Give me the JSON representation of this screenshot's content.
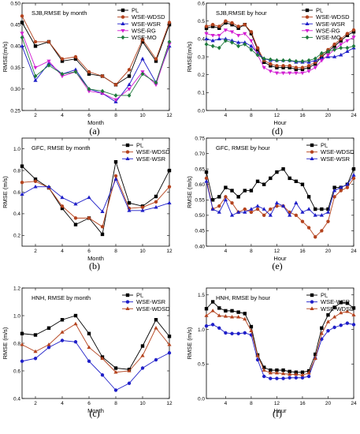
{
  "colors": {
    "PL": "#000000",
    "WSE-WDSD": "#b4431e",
    "WSE-WSR": "#1f1fc8",
    "WSE-RG": "#d21fd2",
    "WSE-MO": "#1e7a3c"
  },
  "chart_data": [
    {
      "type": "line",
      "caption": "(a)",
      "title": "SJB,RMSE by month",
      "xlabel": "Month",
      "ylabel": "RMSE(m/s)",
      "xlim": [
        1,
        12
      ],
      "ylim": [
        0.25,
        0.5
      ],
      "xticks": [
        2,
        4,
        6,
        8,
        10,
        12
      ],
      "yticks": [
        0.25,
        0.3,
        0.35,
        0.4,
        0.45,
        0.5
      ],
      "ytick_labels": [
        "0.25",
        "0.30",
        "0.35",
        "0.40",
        "0.45",
        "0.50"
      ],
      "x": [
        1,
        2,
        3,
        4,
        5,
        6,
        7,
        8,
        9,
        10,
        11,
        12
      ],
      "legend": "top-right",
      "series": [
        {
          "name": "PL",
          "marker": "square",
          "values": [
            0.455,
            0.4,
            0.41,
            0.365,
            0.37,
            0.335,
            0.33,
            0.31,
            0.33,
            0.41,
            0.365,
            0.45
          ]
        },
        {
          "name": "WSE-WDSD",
          "marker": "circle",
          "values": [
            0.47,
            0.41,
            0.41,
            0.37,
            0.375,
            0.34,
            0.33,
            0.31,
            0.345,
            0.415,
            0.37,
            0.455
          ]
        },
        {
          "name": "WSE-WSR",
          "marker": "triangle",
          "values": [
            0.4,
            0.32,
            0.36,
            0.335,
            0.345,
            0.3,
            0.29,
            0.27,
            0.31,
            0.37,
            0.315,
            0.4
          ]
        },
        {
          "name": "WSE-RG",
          "marker": "triangle-down",
          "values": [
            0.43,
            0.35,
            0.365,
            0.33,
            0.34,
            0.295,
            0.29,
            0.275,
            0.3,
            0.34,
            0.31,
            0.405
          ]
        },
        {
          "name": "WSE-MO",
          "marker": "diamond",
          "values": [
            0.42,
            0.33,
            0.355,
            0.335,
            0.34,
            0.3,
            0.295,
            0.285,
            0.285,
            0.335,
            0.315,
            0.41
          ]
        }
      ]
    },
    {
      "type": "line",
      "caption": "(d)",
      "title": "SJB,RMSE by hour",
      "xlabel": "Hour",
      "ylabel": "RMSE(m/s)",
      "xlim": [
        1,
        24
      ],
      "ylim": [
        0.0,
        0.6
      ],
      "xticks": [
        4,
        8,
        12,
        16,
        20,
        24
      ],
      "yticks": [
        0.0,
        0.1,
        0.2,
        0.3,
        0.4,
        0.5,
        0.6
      ],
      "ytick_labels": [
        "0.0",
        "0.1",
        "0.2",
        "0.3",
        "0.4",
        "0.5",
        "0.6"
      ],
      "x": [
        1,
        2,
        3,
        4,
        5,
        6,
        7,
        8,
        9,
        10,
        11,
        12,
        13,
        14,
        15,
        16,
        17,
        18,
        19,
        20,
        21,
        22,
        23,
        24
      ],
      "legend": "top-right",
      "series": [
        {
          "name": "PL",
          "marker": "square",
          "values": [
            0.46,
            0.47,
            0.46,
            0.49,
            0.48,
            0.46,
            0.48,
            0.43,
            0.34,
            0.27,
            0.25,
            0.24,
            0.24,
            0.24,
            0.23,
            0.23,
            0.24,
            0.26,
            0.3,
            0.33,
            0.36,
            0.39,
            0.42,
            0.44
          ]
        },
        {
          "name": "WSE-WDSD",
          "marker": "circle",
          "values": [
            0.47,
            0.48,
            0.47,
            0.5,
            0.49,
            0.47,
            0.48,
            0.44,
            0.35,
            0.28,
            0.26,
            0.25,
            0.25,
            0.25,
            0.24,
            0.24,
            0.25,
            0.27,
            0.31,
            0.34,
            0.37,
            0.4,
            0.43,
            0.45
          ]
        },
        {
          "name": "WSE-WSR",
          "marker": "triangle",
          "values": [
            0.4,
            0.39,
            0.4,
            0.4,
            0.39,
            0.38,
            0.38,
            0.36,
            0.32,
            0.29,
            0.28,
            0.28,
            0.28,
            0.28,
            0.27,
            0.27,
            0.27,
            0.28,
            0.29,
            0.3,
            0.3,
            0.31,
            0.33,
            0.35
          ]
        },
        {
          "name": "WSE-RG",
          "marker": "triangle-down",
          "values": [
            0.43,
            0.42,
            0.42,
            0.45,
            0.44,
            0.42,
            0.43,
            0.39,
            0.31,
            0.24,
            0.22,
            0.21,
            0.21,
            0.21,
            0.21,
            0.21,
            0.22,
            0.24,
            0.28,
            0.31,
            0.34,
            0.37,
            0.39,
            0.41
          ]
        },
        {
          "name": "WSE-MO",
          "marker": "diamond",
          "values": [
            0.37,
            0.36,
            0.35,
            0.39,
            0.38,
            0.36,
            0.37,
            0.34,
            0.31,
            0.29,
            0.285,
            0.28,
            0.28,
            0.28,
            0.275,
            0.275,
            0.28,
            0.29,
            0.32,
            0.33,
            0.34,
            0.35,
            0.35,
            0.36
          ]
        }
      ]
    },
    {
      "type": "line",
      "caption": "(b)",
      "title": "GFC, RMSE by month",
      "xlabel": "Month",
      "ylabel": "RMSE (m/s)",
      "xlim": [
        1,
        12
      ],
      "ylim": [
        0.1,
        1.1
      ],
      "xticks": [
        2,
        4,
        6,
        8,
        10,
        12
      ],
      "yticks": [
        0.2,
        0.4,
        0.6,
        0.8,
        1.0
      ],
      "ytick_labels": [
        "0.2",
        "0.4",
        "0.6",
        "0.8",
        "1.0"
      ],
      "x": [
        1,
        2,
        3,
        4,
        5,
        6,
        7,
        8,
        9,
        10,
        11,
        12
      ],
      "legend": "top-right",
      "series": [
        {
          "name": "PL",
          "marker": "square",
          "values": [
            0.84,
            0.72,
            0.64,
            0.45,
            0.3,
            0.36,
            0.21,
            0.88,
            0.5,
            0.47,
            0.56,
            0.8
          ]
        },
        {
          "name": "WSE-WDSD",
          "marker": "circle",
          "values": [
            0.69,
            0.7,
            0.64,
            0.47,
            0.36,
            0.36,
            0.28,
            0.75,
            0.45,
            0.46,
            0.51,
            0.65
          ]
        },
        {
          "name": "WSE-WSR",
          "marker": "triangle",
          "values": [
            0.58,
            0.65,
            0.65,
            0.55,
            0.49,
            0.55,
            0.42,
            0.72,
            0.43,
            0.43,
            0.46,
            0.5
          ]
        }
      ]
    },
    {
      "type": "line",
      "caption": "(e)",
      "title": "GFC, RMSE by hour",
      "xlabel": "Hour",
      "ylabel": "RMSE (m/s)",
      "xlim": [
        1,
        24
      ],
      "ylim": [
        0.4,
        0.75
      ],
      "xticks": [
        4,
        8,
        12,
        16,
        20,
        24
      ],
      "yticks": [
        0.4,
        0.45,
        0.5,
        0.55,
        0.6,
        0.65,
        0.7,
        0.75
      ],
      "ytick_labels": [
        "0.40",
        "0.45",
        "0.50",
        "0.55",
        "0.60",
        "0.65",
        "0.70",
        "0.75"
      ],
      "x": [
        1,
        2,
        3,
        4,
        5,
        6,
        7,
        8,
        9,
        10,
        11,
        12,
        13,
        14,
        15,
        16,
        17,
        18,
        19,
        20,
        21,
        22,
        23,
        24
      ],
      "legend": "top-right",
      "series": [
        {
          "name": "PL",
          "marker": "square",
          "values": [
            0.64,
            0.55,
            0.56,
            0.59,
            0.58,
            0.56,
            0.58,
            0.58,
            0.61,
            0.6,
            0.62,
            0.64,
            0.65,
            0.62,
            0.61,
            0.6,
            0.56,
            0.52,
            0.52,
            0.52,
            0.59,
            0.59,
            0.6,
            0.65
          ]
        },
        {
          "name": "WSE-WDSD",
          "marker": "circle",
          "values": [
            0.62,
            0.52,
            0.53,
            0.56,
            0.54,
            0.51,
            0.52,
            0.51,
            0.52,
            0.5,
            0.52,
            0.53,
            0.53,
            0.51,
            0.5,
            0.48,
            0.46,
            0.43,
            0.45,
            0.48,
            0.56,
            0.58,
            0.59,
            0.62
          ]
        },
        {
          "name": "WSE-WSR",
          "marker": "triangle",
          "values": [
            0.61,
            0.52,
            0.51,
            0.55,
            0.5,
            0.51,
            0.51,
            0.52,
            0.53,
            0.52,
            0.5,
            0.54,
            0.53,
            0.5,
            0.54,
            0.51,
            0.52,
            0.5,
            0.5,
            0.51,
            0.58,
            0.59,
            0.6,
            0.63
          ]
        }
      ]
    },
    {
      "type": "line",
      "caption": "(c)",
      "title": "HNH, RMSE by month",
      "xlabel": "Month",
      "ylabel": "RMSE (m/s)",
      "xlim": [
        1,
        12
      ],
      "ylim": [
        0.4,
        1.2
      ],
      "xticks": [
        2,
        4,
        6,
        8,
        10,
        12
      ],
      "yticks": [
        0.4,
        0.6,
        0.8,
        1.0,
        1.2
      ],
      "ytick_labels": [
        "0.4",
        "0.6",
        "0.8",
        "1.0",
        "1.2"
      ],
      "x": [
        1,
        2,
        3,
        4,
        5,
        6,
        7,
        8,
        9,
        10,
        11,
        12
      ],
      "legend": "top-right",
      "series": [
        {
          "name": "PL",
          "marker": "square",
          "values": [
            0.87,
            0.86,
            0.91,
            0.97,
            1.0,
            0.87,
            0.7,
            0.62,
            0.61,
            0.78,
            0.97,
            0.85
          ]
        },
        {
          "name": "WSE-WSR",
          "marker": "circle",
          "values": [
            0.67,
            0.69,
            0.77,
            0.82,
            0.81,
            0.67,
            0.57,
            0.46,
            0.51,
            0.62,
            0.68,
            0.73
          ]
        },
        {
          "name": "WSE-WDSD",
          "marker": "triangle",
          "values": [
            0.79,
            0.74,
            0.79,
            0.88,
            0.94,
            0.77,
            0.69,
            0.59,
            0.6,
            0.71,
            0.91,
            0.79
          ]
        }
      ]
    },
    {
      "type": "line",
      "caption": "(f)",
      "title": "HNH, RMSE by hour",
      "xlabel": "Hour",
      "ylabel": "RMSE (m/s)",
      "xlim": [
        1,
        24
      ],
      "ylim": [
        0.0,
        1.6
      ],
      "xticks": [
        4,
        8,
        12,
        16,
        20,
        24
      ],
      "yticks": [
        0.0,
        0.5,
        1.0,
        1.5
      ],
      "ytick_labels": [
        "0.0",
        "0.5",
        "1.0",
        "1.5"
      ],
      "x": [
        1,
        2,
        3,
        4,
        5,
        6,
        7,
        8,
        9,
        10,
        11,
        12,
        13,
        14,
        15,
        16,
        17,
        18,
        19,
        20,
        21,
        22,
        23,
        24
      ],
      "legend": "top-right",
      "series": [
        {
          "name": "PL",
          "marker": "square",
          "values": [
            1.3,
            1.4,
            1.31,
            1.27,
            1.27,
            1.25,
            1.23,
            1.04,
            0.63,
            0.45,
            0.41,
            0.41,
            0.41,
            0.39,
            0.38,
            0.38,
            0.4,
            0.64,
            1.02,
            1.21,
            1.32,
            1.39,
            1.38,
            1.31
          ]
        },
        {
          "name": "WSE-WSR",
          "marker": "circle",
          "values": [
            1.05,
            1.07,
            1.02,
            0.95,
            0.94,
            0.94,
            0.95,
            0.92,
            0.56,
            0.32,
            0.29,
            0.29,
            0.29,
            0.3,
            0.3,
            0.3,
            0.32,
            0.58,
            0.86,
            0.98,
            1.03,
            1.06,
            1.09,
            1.07
          ]
        },
        {
          "name": "WSE-WDSD",
          "marker": "triangle",
          "values": [
            1.2,
            1.27,
            1.2,
            1.19,
            1.18,
            1.18,
            1.15,
            0.98,
            0.62,
            0.41,
            0.37,
            0.37,
            0.36,
            0.35,
            0.35,
            0.34,
            0.37,
            0.58,
            0.94,
            1.11,
            1.18,
            1.24,
            1.26,
            1.21
          ]
        }
      ]
    }
  ]
}
